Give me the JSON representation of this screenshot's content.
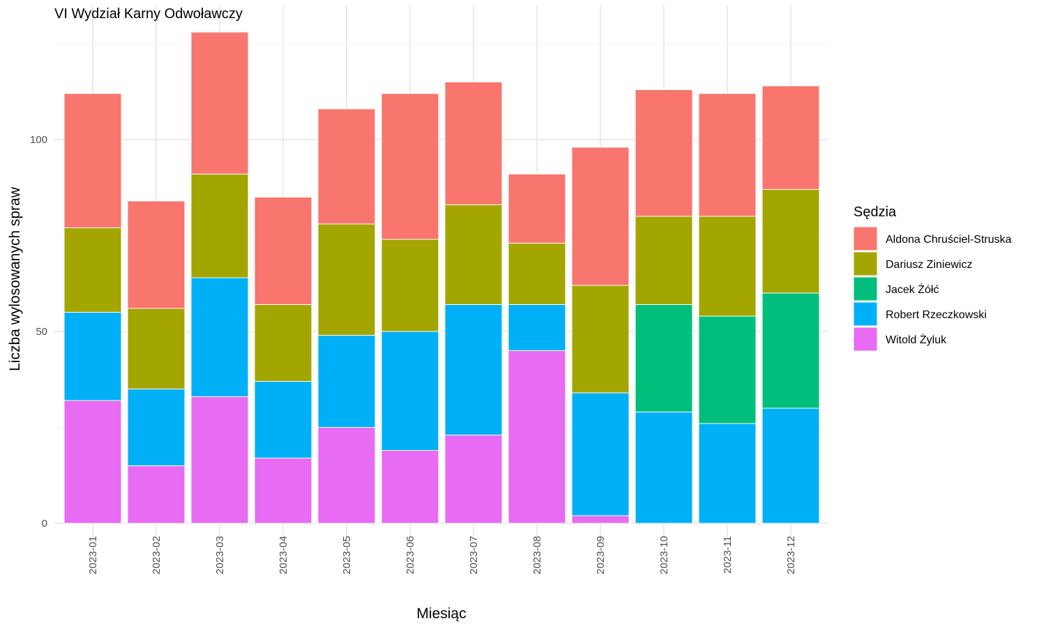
{
  "chart_data": {
    "type": "bar",
    "stacked": true,
    "title": "VI Wydział Karny Odwoławczy",
    "xlabel": "Miesiąc",
    "ylabel": "Liczba wylosowanych spraw",
    "ylim": [
      0,
      128
    ],
    "yticks": [
      0,
      50,
      100
    ],
    "grid": true,
    "legend_title": "Sędzia",
    "legend_position": "right",
    "categories": [
      "2023-01",
      "2023-02",
      "2023-03",
      "2023-04",
      "2023-05",
      "2023-06",
      "2023-07",
      "2023-08",
      "2023-09",
      "2023-10",
      "2023-11",
      "2023-12"
    ],
    "series": [
      {
        "name": "Witold Żyluk",
        "color": "#E76BF3",
        "values": [
          32,
          15,
          33,
          17,
          25,
          19,
          23,
          45,
          2,
          0,
          0,
          0
        ]
      },
      {
        "name": "Robert Rzeczkowski",
        "color": "#00B0F6",
        "values": [
          23,
          20,
          31,
          20,
          24,
          31,
          34,
          12,
          32,
          29,
          26,
          30
        ]
      },
      {
        "name": "Jacek Żółć",
        "color": "#00BF7D",
        "values": [
          0,
          0,
          0,
          0,
          0,
          0,
          0,
          0,
          0,
          28,
          28,
          30
        ]
      },
      {
        "name": "Dariusz Ziniewicz",
        "color": "#A3A500",
        "values": [
          22,
          21,
          27,
          20,
          29,
          24,
          26,
          16,
          28,
          23,
          26,
          27
        ]
      },
      {
        "name": "Aldona Chruściel-Struska",
        "color": "#F8766D",
        "values": [
          35,
          28,
          37,
          28,
          30,
          38,
          32,
          18,
          36,
          33,
          32,
          27
        ]
      }
    ],
    "legend_order": [
      "Aldona Chruściel-Struska",
      "Dariusz Ziniewicz",
      "Jacek Żółć",
      "Robert Rzeczkowski",
      "Witold Żyluk"
    ]
  }
}
